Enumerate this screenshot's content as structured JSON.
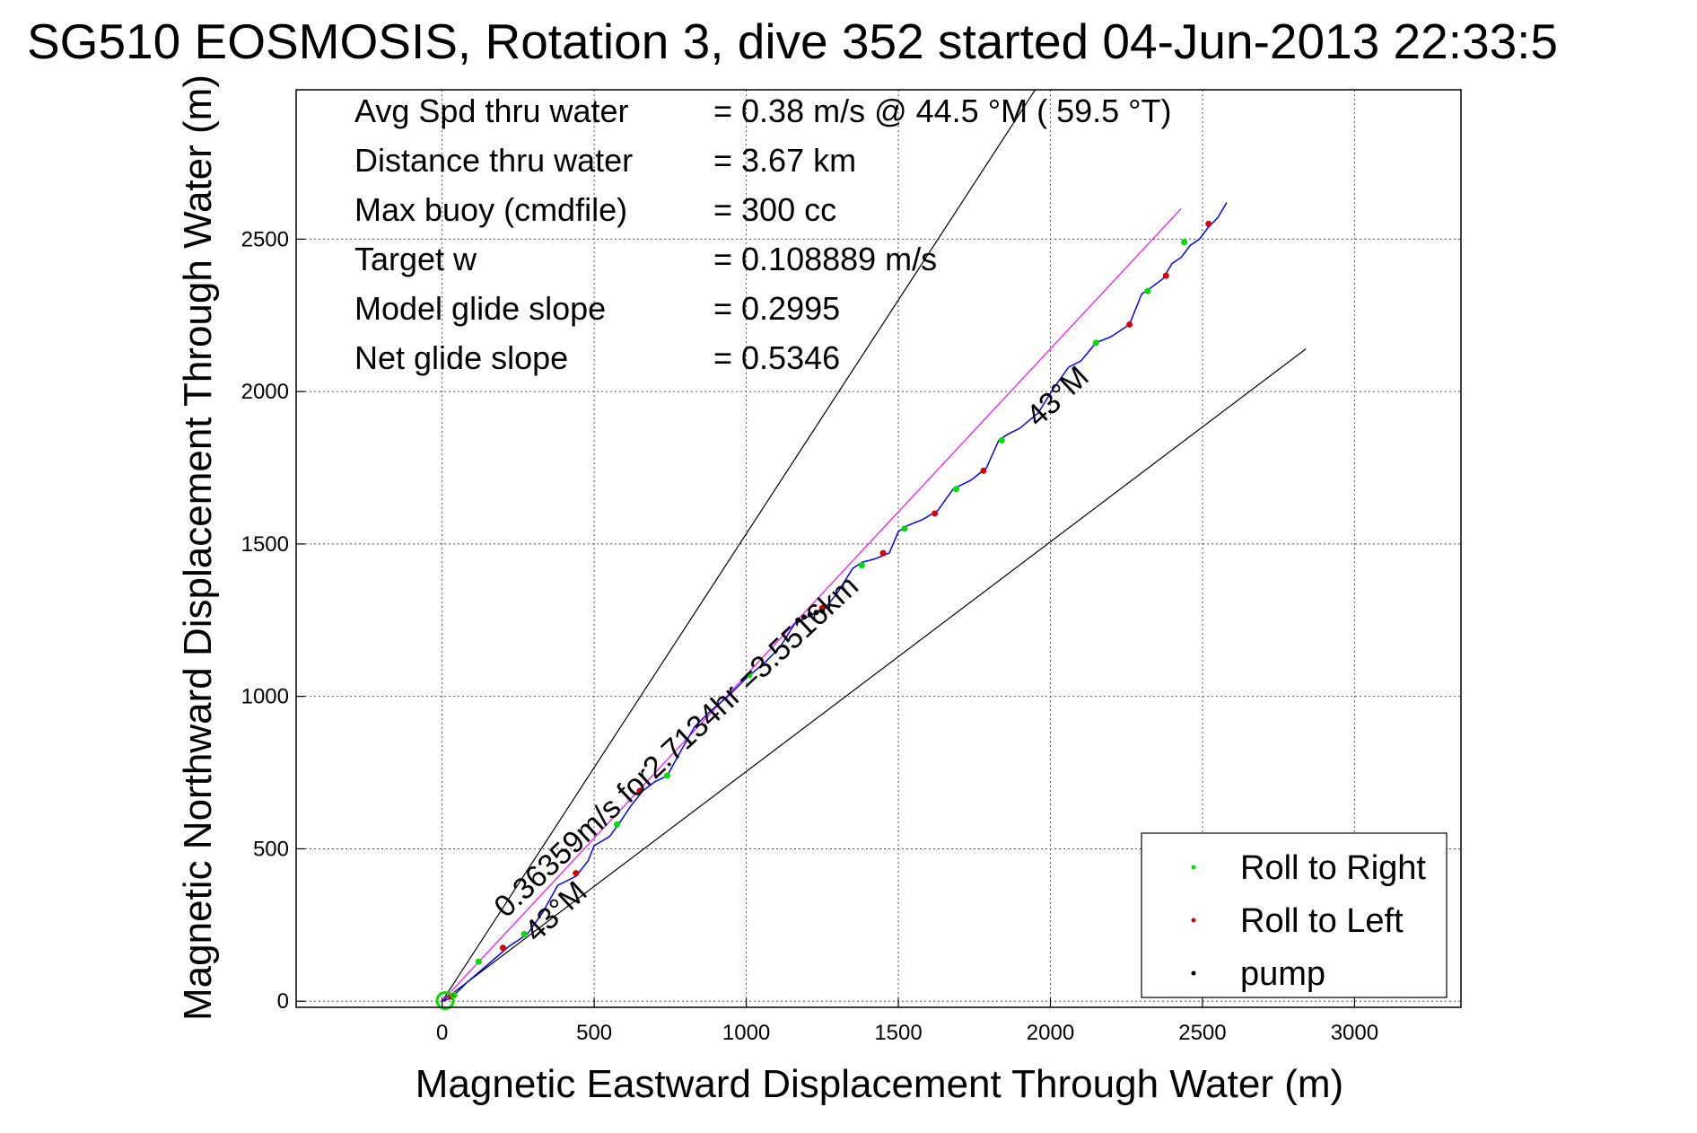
{
  "chart_data": {
    "type": "scatter",
    "title": "SG510 EOSMOSIS, Rotation 3, dive 352 started 04-Jun-2013 22:33:5",
    "xlabel": "Magnetic Eastward Displacement Through Water (m)",
    "ylabel": "Magnetic Northward Displacement Through Water (m)",
    "xlim": [
      -480,
      3350
    ],
    "ylim": [
      -20,
      2990
    ],
    "x_ticks": [
      0,
      500,
      1000,
      1500,
      2000,
      2500,
      3000
    ],
    "y_ticks": [
      0,
      500,
      1000,
      1500,
      2000,
      2500
    ],
    "grid": true,
    "stats": [
      {
        "label": "Avg Spd thru water",
        "value": "=  0.38 m/s @  44.5 °M ( 59.5 °T)"
      },
      {
        "label": "Distance thru water",
        "value": "=  3.67 km"
      },
      {
        "label": "Max buoy (cmdfile)",
        "value": "= 300 cc"
      },
      {
        "label": "Target w",
        "value": "= 0.108889 m/s"
      },
      {
        "label": "Model glide slope",
        "value": "= 0.2995"
      },
      {
        "label": "Net glide slope",
        "value": "= 0.5346"
      }
    ],
    "annotations": [
      {
        "text": "0.36359m/s for2.7134hr =3.5516km",
        "x": 210,
        "y": 270,
        "angle": 43
      },
      {
        "text": "43°M",
        "x": 310,
        "y": 190,
        "angle": 43
      },
      {
        "text": "43°M",
        "x": 1960,
        "y": 1880,
        "angle": 43
      }
    ],
    "reference_lines": [
      {
        "name": "upper-bound-line",
        "x": [
          0,
          1950
        ],
        "y": [
          0,
          2990
        ],
        "color": "#000000"
      },
      {
        "name": "lower-bound-line",
        "x": [
          0,
          2840
        ],
        "y": [
          0,
          2140
        ],
        "color": "#000000"
      },
      {
        "name": "heading-line",
        "x": [
          0,
          2430
        ],
        "y": [
          0,
          2600
        ],
        "color": "#ff00ff"
      }
    ],
    "track": {
      "color": "#0000ff",
      "x": [
        0,
        30,
        80,
        150,
        220,
        280,
        330,
        380,
        440,
        480,
        500,
        550,
        580,
        620,
        660,
        700,
        740,
        790,
        830,
        880,
        940,
        1000,
        1060,
        1110,
        1160,
        1200,
        1260,
        1300,
        1350,
        1380,
        1420,
        1470,
        1500,
        1530,
        1580,
        1630,
        1680,
        1740,
        1790,
        1830,
        1860,
        1900,
        1960,
        2010,
        2060,
        2100,
        2150,
        2200,
        2260,
        2300,
        2330,
        2370,
        2400,
        2430,
        2460,
        2490,
        2520,
        2550,
        2580
      ],
      "y": [
        0,
        10,
        60,
        120,
        180,
        220,
        290,
        380,
        410,
        460,
        510,
        540,
        580,
        640,
        690,
        720,
        740,
        830,
        900,
        950,
        1000,
        1060,
        1110,
        1160,
        1240,
        1260,
        1290,
        1340,
        1420,
        1440,
        1450,
        1470,
        1540,
        1560,
        1580,
        1610,
        1680,
        1710,
        1750,
        1840,
        1860,
        1880,
        1930,
        2010,
        2080,
        2100,
        2160,
        2180,
        2220,
        2320,
        2340,
        2370,
        2420,
        2440,
        2480,
        2500,
        2540,
        2570,
        2620
      ]
    },
    "markers": {
      "roll_right": {
        "color": "#00dd00",
        "x": [
          40,
          120,
          270,
          575,
          740,
          1010,
          1380,
          1520,
          1690,
          1840,
          2150,
          2320,
          2440
        ],
        "y": [
          20,
          130,
          220,
          580,
          740,
          1070,
          1430,
          1550,
          1680,
          1840,
          2160,
          2330,
          2490
        ]
      },
      "roll_left": {
        "color": "#dd0000",
        "x": [
          30,
          200,
          440,
          650,
          1250,
          1450,
          1620,
          1780,
          2260,
          2380,
          2520
        ],
        "y": [
          15,
          175,
          420,
          690,
          1290,
          1470,
          1600,
          1740,
          2220,
          2380,
          2550
        ]
      },
      "pump": {
        "color": "#000000",
        "x": [
          1170,
          1190,
          1210,
          1230,
          1250
        ],
        "y": [
          1250,
          1260,
          1268,
          1275,
          1280
        ]
      }
    },
    "legend": {
      "position": "bottom-right",
      "entries": [
        {
          "label": "Roll to Right",
          "color": "#00dd00"
        },
        {
          "label": "Roll to Left",
          "color": "#dd0000"
        },
        {
          "label": "pump",
          "color": "#000000"
        }
      ]
    }
  }
}
